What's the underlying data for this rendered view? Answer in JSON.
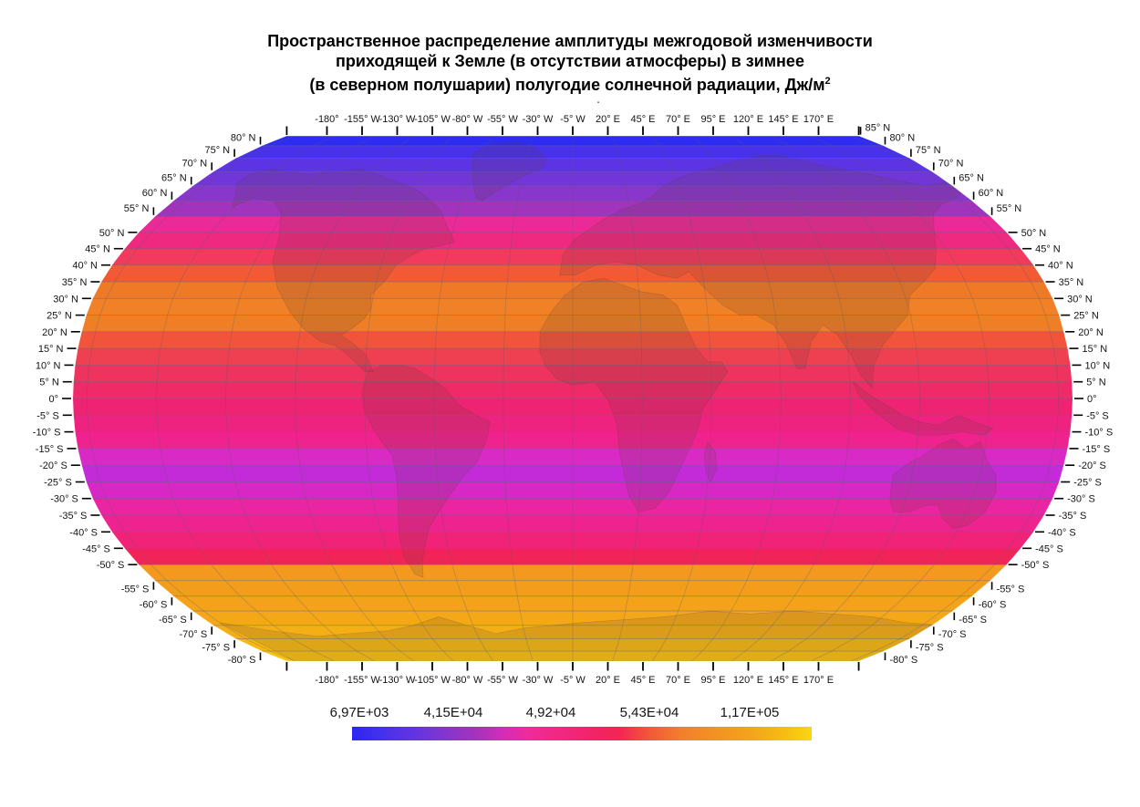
{
  "figure": {
    "title_lines": [
      "Пространственное распределение амплитуды межгодовой изменчивости",
      "приходящей к Земле (в отсутствии атмосферы) в зимнее",
      "(в северном полушарии) полугодие солнечной радиации, Дж/м"
    ],
    "title_superscript": "2",
    "stray_dot": "."
  },
  "map": {
    "lon_tick_labels": [
      "-180°",
      "-155° W",
      "-130° W",
      "-105° W",
      "-80° W",
      "-55° W",
      "-30° W",
      "-5° W",
      "20° E",
      "45° E",
      "70° E",
      "95° E",
      "120° E",
      "145° E",
      "170° E"
    ],
    "lat_tick_labels_left": [
      "80° N",
      "75° N",
      "70° N",
      "65° N",
      "60° N",
      "55° N",
      "50° N",
      "45° N",
      "40° N",
      "35° N",
      "30° N",
      "25° N",
      "20° N",
      "15° N",
      "10° N",
      "5° N",
      "0°",
      "-5° S",
      "-10° S",
      "-15° S",
      "-20° S",
      "-25° S",
      "-30° S",
      "-35° S",
      "-40° S",
      "-45° S",
      "-50° S",
      "-55° S",
      "-60° S",
      "-65° S",
      "-70° S",
      "-75° S",
      "-80° S"
    ],
    "lat_tick_labels_right": [
      "85° N",
      "80° N",
      "75° N",
      "70° N",
      "65° N",
      "60° N",
      "55° N",
      "50° N",
      "45° N",
      "40° N",
      "35° N",
      "30° N",
      "25° N",
      "20° N",
      "15° N",
      "10° N",
      "5° N",
      "0°",
      "-5° S",
      "-10° S",
      "-15° S",
      "-20° S",
      "-25° S",
      "-30° S",
      "-35° S",
      "-40° S",
      "-45° S",
      "-50° S",
      "-55° S",
      "-60° S",
      "-65° S",
      "-70° S",
      "-75° S",
      "-80° S"
    ]
  },
  "chart_data": {
    "type": "heatmap",
    "title": "Пространственное распределение амплитуды межгодовой изменчивости приходящей к Земле (в отсутствии атмосферы) в зимнее (в северном полушарии) полугодие солнечной радиации, Дж/м²",
    "units": "Дж/м²",
    "projection": "Robinson world map, central meridian -5°",
    "lat_range": [
      -85,
      85
    ],
    "lon_gridlines_deg": [
      -180,
      -155,
      -130,
      -105,
      -80,
      -55,
      -30,
      -5,
      20,
      45,
      70,
      95,
      120,
      145,
      170
    ],
    "lat_gridline_step_deg": 5,
    "bands": [
      {
        "from": 85,
        "to": 80,
        "color": "#2e2cf2"
      },
      {
        "from": 80,
        "to": 75,
        "color": "#4731ea"
      },
      {
        "from": 75,
        "to": 70,
        "color": "#5d34e3"
      },
      {
        "from": 70,
        "to": 65,
        "color": "#7136d8"
      },
      {
        "from": 65,
        "to": 60,
        "color": "#8836cb"
      },
      {
        "from": 60,
        "to": 55,
        "color": "#a133bd"
      },
      {
        "from": 55,
        "to": 50,
        "color": "#e92a97"
      },
      {
        "from": 50,
        "to": 45,
        "color": "#ef2980"
      },
      {
        "from": 45,
        "to": 40,
        "color": "#f23a5e"
      },
      {
        "from": 40,
        "to": 35,
        "color": "#f15a35"
      },
      {
        "from": 35,
        "to": 30,
        "color": "#ee7a28"
      },
      {
        "from": 30,
        "to": 25,
        "color": "#f08126"
      },
      {
        "from": 25,
        "to": 20,
        "color": "#ef7e27"
      },
      {
        "from": 20,
        "to": 15,
        "color": "#f0543a"
      },
      {
        "from": 15,
        "to": 10,
        "color": "#ef4052"
      },
      {
        "from": 10,
        "to": 5,
        "color": "#ee335e"
      },
      {
        "from": 5,
        "to": 0,
        "color": "#ee2a68"
      },
      {
        "from": 0,
        "to": -5,
        "color": "#ee2372"
      },
      {
        "from": -5,
        "to": -10,
        "color": "#ee2380"
      },
      {
        "from": -10,
        "to": -15,
        "color": "#ee238e"
      },
      {
        "from": -15,
        "to": -20,
        "color": "#d92ac6"
      },
      {
        "from": -20,
        "to": -25,
        "color": "#c42bd8"
      },
      {
        "from": -25,
        "to": -30,
        "color": "#d728c5"
      },
      {
        "from": -30,
        "to": -35,
        "color": "#e925a2"
      },
      {
        "from": -35,
        "to": -40,
        "color": "#ee2390"
      },
      {
        "from": -40,
        "to": -45,
        "color": "#f02378"
      },
      {
        "from": -45,
        "to": -50,
        "color": "#f1245a"
      },
      {
        "from": -50,
        "to": -55,
        "color": "#f2991e"
      },
      {
        "from": -55,
        "to": -60,
        "color": "#f29d1c"
      },
      {
        "from": -60,
        "to": -65,
        "color": "#f3a21a"
      },
      {
        "from": -65,
        "to": -70,
        "color": "#f4a818"
      },
      {
        "from": -70,
        "to": -75,
        "color": "#f5af16"
      },
      {
        "from": -75,
        "to": -80,
        "color": "#f6b913"
      },
      {
        "from": -80,
        "to": -85,
        "color": "#f8c411"
      }
    ],
    "colorbar": {
      "labels": [
        "6,97E+03",
        "4,15E+04",
        "4,92+04",
        "5,43E+04",
        "1,17E+05"
      ],
      "values": [
        6970,
        41500,
        49200,
        54300,
        117000
      ],
      "gradient_stops": [
        [
          0.0,
          "#2b26f0"
        ],
        [
          0.06,
          "#4330ec"
        ],
        [
          0.13,
          "#6134e2"
        ],
        [
          0.2,
          "#8136d0"
        ],
        [
          0.27,
          "#a432bc"
        ],
        [
          0.33,
          "#d52cb8"
        ],
        [
          0.38,
          "#ee2b9b"
        ],
        [
          0.45,
          "#f02883"
        ],
        [
          0.52,
          "#f1246a"
        ],
        [
          0.58,
          "#f22553"
        ],
        [
          0.65,
          "#f25b36"
        ],
        [
          0.72,
          "#f3802c"
        ],
        [
          0.79,
          "#f29222"
        ],
        [
          0.87,
          "#f4a41c"
        ],
        [
          0.94,
          "#f6bc15"
        ],
        [
          1.0,
          "#f9d610"
        ]
      ]
    }
  }
}
